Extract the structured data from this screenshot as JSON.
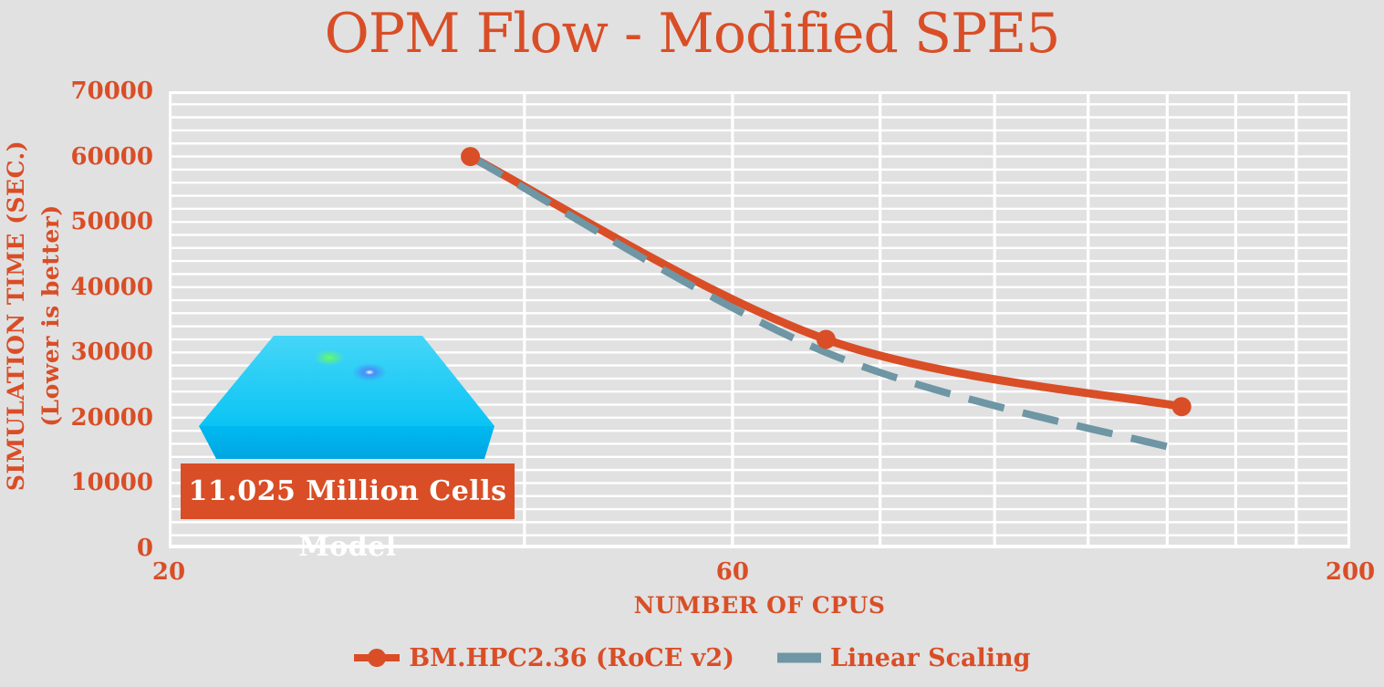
{
  "page": {
    "background": "#e1e1e2",
    "accent": "#d94e26",
    "teal": "#6e96a4",
    "gridline_color": "#ffffff"
  },
  "chart_data": {
    "type": "line",
    "title": "OPM Flow - Modified SPE5",
    "xlabel": "NUMBER OF CPUS",
    "ylabel_line1": "SIMULATION TIME (SEC.)",
    "ylabel_line2": "(Lower is better)",
    "x_scale": "log",
    "xlim": [
      20,
      200
    ],
    "ylim": [
      0,
      70000
    ],
    "xticks": [
      20,
      60,
      200
    ],
    "yticks": [
      0,
      10000,
      20000,
      30000,
      40000,
      50000,
      60000,
      70000
    ],
    "y_minor_gridline_step": 2000,
    "x_gridlines_at": [
      40,
      60,
      80,
      100,
      120,
      140,
      160,
      180
    ],
    "grid": true,
    "legend_position": "bottom",
    "series": [
      {
        "name": "BM.HPC2.36 (RoCE v2)",
        "color": "#d94e26",
        "line_style": "solid",
        "marker": "circle",
        "x": [
          36,
          72,
          144
        ],
        "y": [
          60000,
          32000,
          21700
        ]
      },
      {
        "name": "Linear Scaling",
        "color": "#6e96a4",
        "line_style": "dashed",
        "marker": "none",
        "x": [
          36,
          72,
          144
        ],
        "y": [
          60000,
          30000,
          15000
        ]
      }
    ],
    "annotation": {
      "label": "11.025 Million Cells Model"
    }
  },
  "model_image": {
    "name": "reservoir-model-3d-render",
    "colors": {
      "top_light": "#46d6f8",
      "top_deep": "#0ac4f4",
      "front": "#00b9f0",
      "front_dark": "#00a6e3",
      "spot_green": "#6bff55",
      "spot_blue": "#4d7cf5"
    }
  }
}
